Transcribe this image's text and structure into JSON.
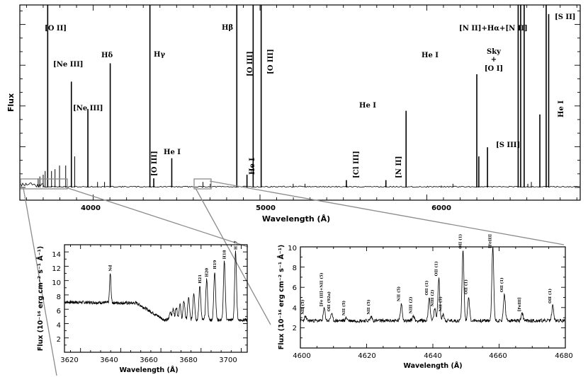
{
  "chart_data": [
    {
      "type": "line",
      "xlabel": "Wavelength (Å)",
      "ylabel": "Flux",
      "xlim": [
        3560,
        6920
      ],
      "xticks": [
        4000,
        5000,
        6000
      ],
      "yticks_labeled": false,
      "grid": false,
      "lines": [
        {
          "x": 3727,
          "h": 1.0,
          "label": "[O II]"
        },
        {
          "x": 3869,
          "h": 0.58,
          "label": "[Ne III]"
        },
        {
          "x": 3968,
          "h": 0.43,
          "label": "[Ne III]"
        },
        {
          "x": 4102,
          "h": 0.68,
          "label": "Hδ"
        },
        {
          "x": 4340,
          "h": 1.0,
          "label": "Hγ"
        },
        {
          "x": 4363,
          "h": 0.05,
          "label": "[O III]"
        },
        {
          "x": 4471,
          "h": 0.16,
          "label": "He I"
        },
        {
          "x": 4861,
          "h": 1.0,
          "label": "Hβ"
        },
        {
          "x": 4922,
          "h": 0.07,
          "label": "He I"
        },
        {
          "x": 4959,
          "h": 1.0,
          "label": "[O III]"
        },
        {
          "x": 5007,
          "h": 1.0,
          "label": "[O III]"
        },
        {
          "x": 5518,
          "h": 0.04,
          "label": "[Cl III]"
        },
        {
          "x": 5876,
          "h": 0.42,
          "label": "He I"
        },
        {
          "x": 5755,
          "h": 0.04,
          "label": "[N II]"
        },
        {
          "x": 6300,
          "h": 0.62,
          "label": "Sky + [O I]"
        },
        {
          "x": 6312,
          "h": 0.17,
          "label": ""
        },
        {
          "x": 6364,
          "h": 0.22,
          "label": "[S III]"
        },
        {
          "x": 6548,
          "h": 1.0,
          "label": "[N II]+Hα+[N II]"
        },
        {
          "x": 6563,
          "h": 1.0,
          "label": ""
        },
        {
          "x": 6584,
          "h": 1.0,
          "label": ""
        },
        {
          "x": 6678,
          "h": 0.4,
          "label": "He I"
        },
        {
          "x": 6716,
          "h": 1.0,
          "label": "[S II]"
        },
        {
          "x": 6731,
          "h": 0.95,
          "label": ""
        }
      ],
      "extra_labels": [
        {
          "x": 6000,
          "label": "He I"
        }
      ]
    },
    {
      "type": "line",
      "xlabel": "Wavelength (Å)",
      "ylabel": "Flux (10⁻¹⁶ erg cm⁻² s⁻¹ Å⁻¹)",
      "xlim": [
        3612,
        3703
      ],
      "ylim": [
        0,
        15
      ],
      "xticks": [
        3620,
        3640,
        3660,
        3680,
        3700
      ],
      "yticks": [
        0,
        2,
        4,
        6,
        8,
        10,
        12,
        14
      ],
      "continuum": {
        "left": 7.0,
        "floor": 4.5,
        "ramp_start": 3648,
        "ramp_min_x": 3662
      },
      "lines": [
        {
          "x": 3634.8,
          "y": 11.0,
          "label": "Nd"
        },
        {
          "x": 3664.7,
          "y": 5.6,
          "label": ""
        },
        {
          "x": 3666.1,
          "y": 6.0,
          "label": ""
        },
        {
          "x": 3667.7,
          "y": 6.3,
          "label": ""
        },
        {
          "x": 3669.5,
          "y": 6.7,
          "label": ""
        },
        {
          "x": 3671.5,
          "y": 7.1,
          "label": ""
        },
        {
          "x": 3673.8,
          "y": 7.6,
          "label": ""
        },
        {
          "x": 3676.4,
          "y": 8.3,
          "label": ""
        },
        {
          "x": 3679.4,
          "y": 9.3,
          "label": "H21"
        },
        {
          "x": 3682.8,
          "y": 10.2,
          "label": "H20"
        },
        {
          "x": 3686.8,
          "y": 11.3,
          "label": "H19"
        },
        {
          "x": 3691.6,
          "y": 12.7,
          "label": "H18"
        },
        {
          "x": 3697.2,
          "y": 14.0,
          "label": "H17"
        }
      ]
    },
    {
      "type": "line",
      "xlabel": "Wavelength (Å)",
      "ylabel": "Flux (10⁻¹⁶ erg cm⁻² s⁻¹ Å⁻¹)",
      "xlim": [
        4600,
        4680
      ],
      "ylim": [
        0,
        10
      ],
      "xticks": [
        4600,
        4620,
        4640,
        4660,
        4680
      ],
      "yticks": [
        0,
        2,
        4,
        6,
        8,
        10
      ],
      "continuum": 2.7,
      "lines": [
        {
          "x": 4601.5,
          "y": 3.1,
          "label": "NII (5)"
        },
        {
          "x": 4607.2,
          "y": 3.9,
          "label": "[Fe III]+NII (5)"
        },
        {
          "x": 4609.4,
          "y": 3.4,
          "label": "OII (92a)"
        },
        {
          "x": 4613.9,
          "y": 3.0,
          "label": "NII (5)"
        },
        {
          "x": 4621.4,
          "y": 3.1,
          "label": "NII (5)"
        },
        {
          "x": 4630.5,
          "y": 4.4,
          "label": "NII (5)"
        },
        {
          "x": 4634.1,
          "y": 3.2,
          "label": "NIII (2)"
        },
        {
          "x": 4638.9,
          "y": 5.0,
          "label": "OII (1)"
        },
        {
          "x": 4640.6,
          "y": 3.9,
          "label": "NIII (2)"
        },
        {
          "x": 4641.8,
          "y": 6.9,
          "label": "OII (1)"
        },
        {
          "x": 4643.1,
          "y": 3.4,
          "label": "NII (5)"
        },
        {
          "x": 4649.1,
          "y": 9.6,
          "label": "OII (1)"
        },
        {
          "x": 4650.8,
          "y": 5.1,
          "label": "OII (1)"
        },
        {
          "x": 4658.1,
          "y": 10.0,
          "label": "[FeIII]"
        },
        {
          "x": 4661.6,
          "y": 5.3,
          "label": "OII (1)"
        },
        {
          "x": 4667.0,
          "y": 3.4,
          "label": "[FeIII]"
        },
        {
          "x": 4676.2,
          "y": 4.2,
          "label": "OII (1)"
        }
      ]
    }
  ],
  "main": {
    "tick_4000": "4000",
    "tick_5000": "5000",
    "tick_6000": "6000",
    "xlabel": "Wavelength (Å)",
    "ylabel": "Flux",
    "l_oii": "[O II]",
    "l_neiii_a": "[Ne III]",
    "l_neiii_b": "[Ne III]",
    "l_hdelta": "Hδ",
    "l_hgamma": "Hγ",
    "l_oiii_4363": "[O III]",
    "l_hei_4471": "He I",
    "l_hbeta": "Hβ",
    "l_hei_4922": "He I",
    "l_oiii_4959": "[O III]",
    "l_oiii_5007": "[O III]",
    "l_cliii": "[Cl III]",
    "l_hei_5876": "He I",
    "l_nii_5755": "[N II]",
    "l_hei_6000": "He I",
    "l_sky1": "Sky",
    "l_sky2": "+",
    "l_sky3": "[O I]",
    "l_siii": "[S III]",
    "l_niihalpha": "[N II]+Hα+[N II]",
    "l_sii": "[S II]",
    "l_hei_6678": "He I"
  },
  "inset_left": {
    "xlabel": "Wavelength (Å)",
    "ylabel": "Flux (10⁻¹⁶ erg cm⁻² s⁻¹ Å⁻¹)",
    "xticks": [
      "3620",
      "3640",
      "3660",
      "3680",
      "3700"
    ],
    "yticks": [
      "2",
      "4",
      "6",
      "8",
      "10",
      "12",
      "14"
    ]
  },
  "inset_right": {
    "xlabel": "Wavelength (Å)",
    "ylabel": "Flux (10⁻¹⁶ erg cm⁻² s⁻¹ Å⁻¹)",
    "xticks": [
      "4600",
      "4620",
      "4640",
      "4660",
      "4680"
    ],
    "yticks": [
      "2",
      "4",
      "6",
      "8",
      "10"
    ]
  }
}
